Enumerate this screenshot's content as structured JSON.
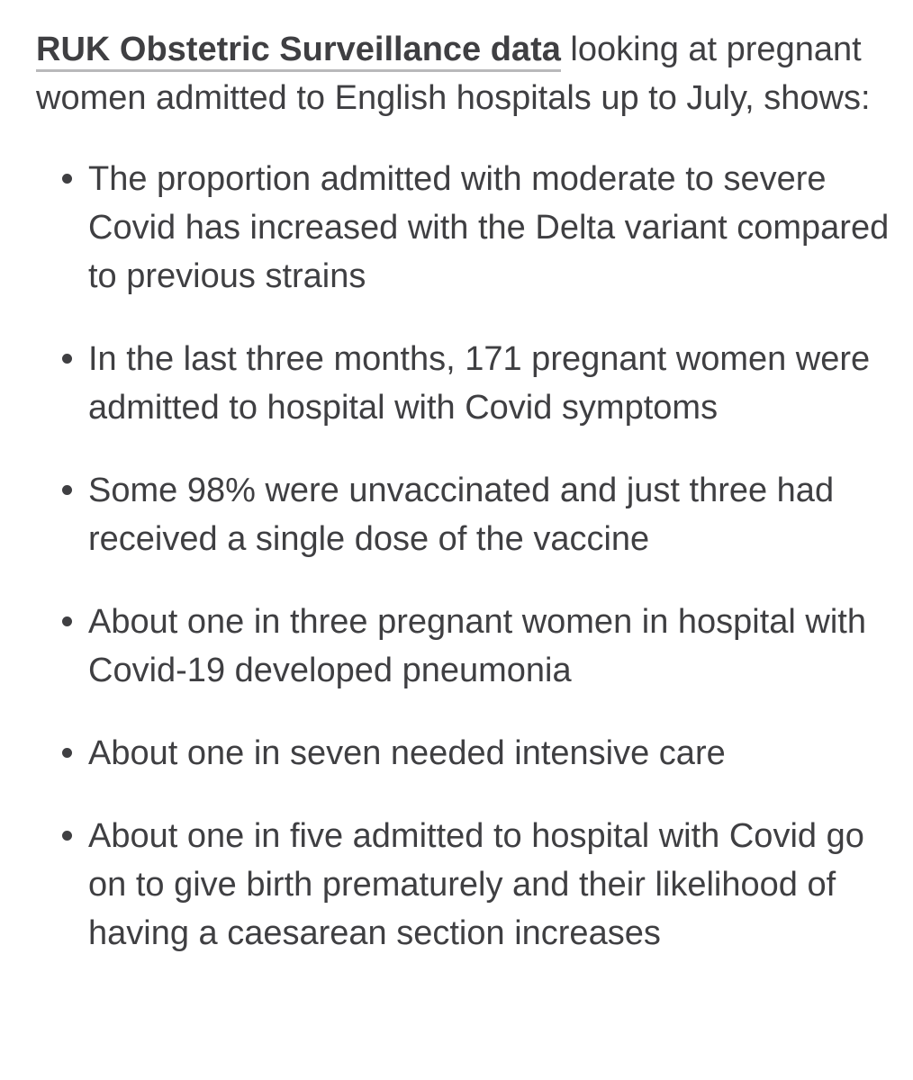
{
  "intro": {
    "link_text": "RUK Obstetric Surveillance data",
    "rest_text": " looking at pregnant women admitted to English hospitals up to July, shows:"
  },
  "facts": [
    "The proportion admitted with moderate to severe Covid has increased with the Delta variant compared to previous strains",
    "In the last three months, 171 pregnant women were admitted to hospital with Covid symptoms",
    "Some 98% were unvaccinated and just three had received a single dose of the vaccine",
    "About one in three pregnant women in hospital with Covid-19 developed pneumonia",
    "About one in seven needed intensive care",
    "About one in five admitted to hospital with Covid go on to give birth prematurely and their likelihood of having a caesarean section increases"
  ],
  "colors": {
    "text": "#3f3f42",
    "link_underline": "#b9b9bb",
    "background": "#ffffff"
  }
}
